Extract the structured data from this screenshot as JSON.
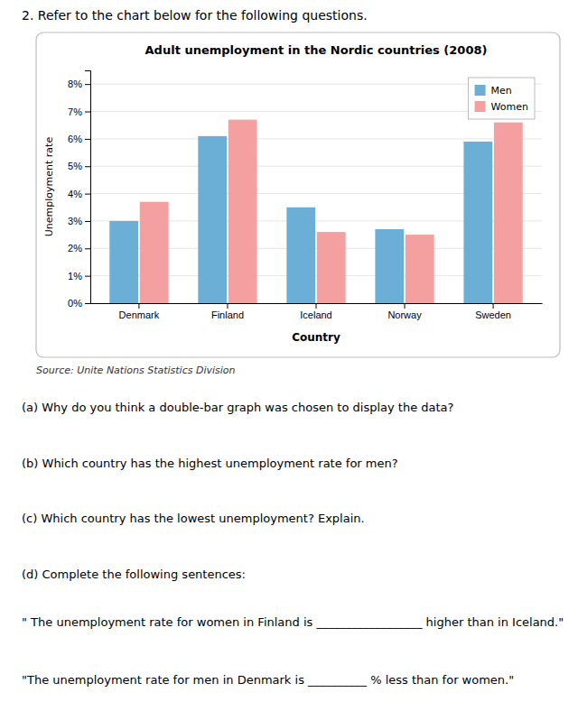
{
  "chart_data": {
    "type": "bar",
    "title": "Adult unemployment in the Nordic countries (2008)",
    "xlabel": "Country",
    "ylabel": "Unemployment rate",
    "categories": [
      "Denmark",
      "Finland",
      "Iceland",
      "Norway",
      "Sweden"
    ],
    "series": [
      {
        "name": "Men",
        "color": "#6baed6",
        "values": [
          3.0,
          6.1,
          3.5,
          2.7,
          5.9
        ]
      },
      {
        "name": "Women",
        "color": "#f4a0a0",
        "values": [
          3.7,
          6.7,
          2.6,
          2.5,
          6.6
        ]
      }
    ],
    "ylim": [
      0,
      8.5
    ],
    "yticks": [
      {
        "value": 0,
        "label": "0%"
      },
      {
        "value": 1,
        "label": "1%"
      },
      {
        "value": 2,
        "label": "2%"
      },
      {
        "value": 3,
        "label": "3%"
      },
      {
        "value": 4,
        "label": "4%"
      },
      {
        "value": 5,
        "label": "5%"
      },
      {
        "value": 6,
        "label": "6%"
      },
      {
        "value": 7,
        "label": "7%"
      },
      {
        "value": 8,
        "label": "8%"
      }
    ],
    "grid": true,
    "legend": "upper right",
    "annotations": [
      "2.   Refer to the chart below for the following questions.",
      "Source: Unite Nations Statistics Division",
      "(a)  Why do you think a double-bar graph was chosen to display the data?",
      "(b) Which country has the highest unemployment rate for men?",
      "(c) Which country has the lowest unemployment? Explain.",
      "(d) Complete the following sentences:",
      "\" The unemployment rate for women in Finland is __________________ higher than in Iceland.\"",
      "\"The unemployment rate for men in Denmark is __________ % less than for women.\""
    ]
  }
}
